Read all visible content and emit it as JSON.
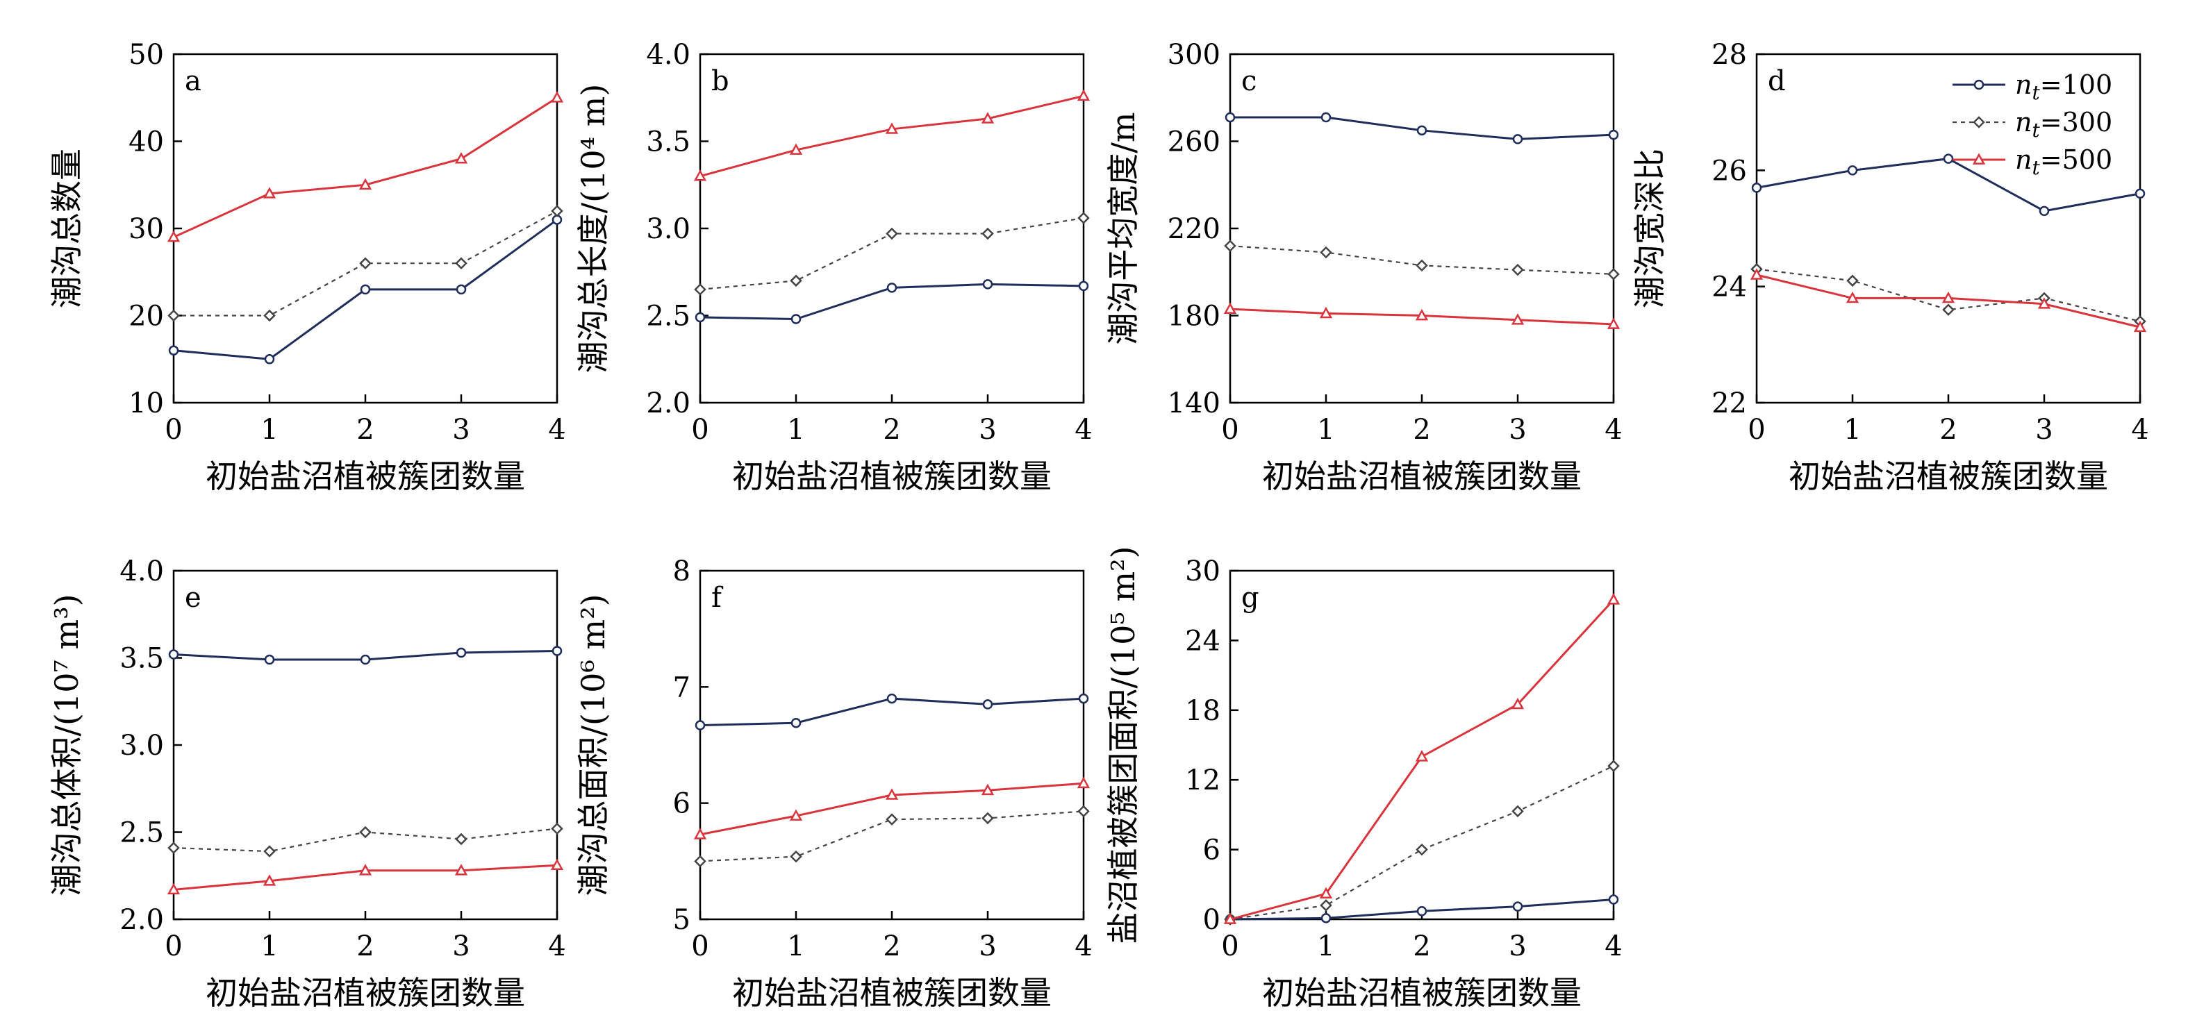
{
  "colors": {
    "n100": "#1f2d5a",
    "n300": "#444444",
    "n500": "#d9343c"
  },
  "legend": {
    "entries": [
      {
        "series": "n100",
        "prefix": "n",
        "sub": "t",
        "suffix": "=100",
        "marker": "circle",
        "dash": "solid"
      },
      {
        "series": "n300",
        "prefix": "n",
        "sub": "t",
        "suffix": "=300",
        "marker": "diamond",
        "dash": "dotted"
      },
      {
        "series": "n500",
        "prefix": "n",
        "sub": "t",
        "suffix": "=500",
        "marker": "triangle",
        "dash": "solid"
      }
    ]
  },
  "chart_data": [
    {
      "id": "a",
      "type": "line",
      "letter": "a",
      "xlabel": "初始盐沼植被簇团数量",
      "ylabel": "潮沟总数量",
      "x": [
        0,
        1,
        2,
        3,
        4
      ],
      "ylim": [
        10,
        50
      ],
      "yticks": [
        10,
        20,
        30,
        40,
        50
      ],
      "series": [
        {
          "key": "n100",
          "values": [
            16,
            15,
            23,
            23,
            31
          ]
        },
        {
          "key": "n300",
          "values": [
            20,
            20,
            26,
            26,
            32
          ]
        },
        {
          "key": "n500",
          "values": [
            29,
            34,
            35,
            38,
            45
          ]
        }
      ]
    },
    {
      "id": "b",
      "type": "line",
      "letter": "b",
      "xlabel": "初始盐沼植被簇团数量",
      "ylabel": "潮沟总长度/(10⁴ m)",
      "x": [
        0,
        1,
        2,
        3,
        4
      ],
      "ylim": [
        2.0,
        4.0
      ],
      "yticks": [
        "2.0",
        "2.5",
        "3.0",
        "3.5",
        "4.0"
      ],
      "series": [
        {
          "key": "n100",
          "values": [
            2.49,
            2.48,
            2.66,
            2.68,
            2.67
          ]
        },
        {
          "key": "n300",
          "values": [
            2.65,
            2.7,
            2.97,
            2.97,
            3.06
          ]
        },
        {
          "key": "n500",
          "values": [
            3.3,
            3.45,
            3.57,
            3.63,
            3.76
          ]
        }
      ]
    },
    {
      "id": "c",
      "type": "line",
      "letter": "c",
      "xlabel": "初始盐沼植被簇团数量",
      "ylabel": "潮沟平均宽度/m",
      "x": [
        0,
        1,
        2,
        3,
        4
      ],
      "ylim": [
        140,
        300
      ],
      "yticks": [
        140,
        180,
        220,
        260,
        300
      ],
      "series": [
        {
          "key": "n100",
          "values": [
            271,
            271,
            265,
            261,
            263
          ]
        },
        {
          "key": "n300",
          "values": [
            212,
            209,
            203,
            201,
            199
          ]
        },
        {
          "key": "n500",
          "values": [
            183,
            181,
            180,
            178,
            176
          ]
        }
      ]
    },
    {
      "id": "d",
      "type": "line",
      "letter": "d",
      "xlabel": "初始盐沼植被簇团数量",
      "ylabel": "潮沟宽深比",
      "x": [
        0,
        1,
        2,
        3,
        4
      ],
      "ylim": [
        22,
        28
      ],
      "yticks": [
        22,
        24,
        26,
        28
      ],
      "series": [
        {
          "key": "n100",
          "values": [
            25.7,
            26.0,
            26.2,
            25.3,
            25.6
          ]
        },
        {
          "key": "n300",
          "values": [
            24.3,
            24.1,
            23.6,
            23.8,
            23.4
          ]
        },
        {
          "key": "n500",
          "values": [
            24.2,
            23.8,
            23.8,
            23.7,
            23.3
          ]
        }
      ]
    },
    {
      "id": "e",
      "type": "line",
      "letter": "e",
      "xlabel": "初始盐沼植被簇团数量",
      "ylabel": "潮沟总体积/(10⁷ m³)",
      "x": [
        0,
        1,
        2,
        3,
        4
      ],
      "ylim": [
        2.0,
        4.0
      ],
      "yticks": [
        "2.0",
        "2.5",
        "3.0",
        "3.5",
        "4.0"
      ],
      "series": [
        {
          "key": "n100",
          "values": [
            3.52,
            3.49,
            3.49,
            3.53,
            3.54
          ]
        },
        {
          "key": "n300",
          "values": [
            2.41,
            2.39,
            2.5,
            2.46,
            2.52
          ]
        },
        {
          "key": "n500",
          "values": [
            2.17,
            2.22,
            2.28,
            2.28,
            2.31
          ]
        }
      ]
    },
    {
      "id": "f",
      "type": "line",
      "letter": "f",
      "xlabel": "初始盐沼植被簇团数量",
      "ylabel": "潮沟总面积/(10⁶ m²)",
      "x": [
        0,
        1,
        2,
        3,
        4
      ],
      "ylim": [
        5,
        8
      ],
      "yticks": [
        5,
        6,
        7,
        8
      ],
      "series": [
        {
          "key": "n100",
          "values": [
            6.67,
            6.69,
            6.9,
            6.85,
            6.9
          ]
        },
        {
          "key": "n300",
          "values": [
            5.5,
            5.54,
            5.86,
            5.87,
            5.93
          ]
        },
        {
          "key": "n500",
          "values": [
            5.73,
            5.89,
            6.07,
            6.11,
            6.17
          ]
        }
      ]
    },
    {
      "id": "g",
      "type": "line",
      "letter": "g",
      "xlabel": "初始盐沼植被簇团数量",
      "ylabel": "盐沼植被簇团面积/(10⁵ m²)",
      "x": [
        0,
        1,
        2,
        3,
        4
      ],
      "ylim": [
        0,
        30
      ],
      "yticks": [
        0,
        6,
        12,
        18,
        24,
        30
      ],
      "series": [
        {
          "key": "n100",
          "values": [
            0,
            0.1,
            0.7,
            1.1,
            1.7
          ]
        },
        {
          "key": "n300",
          "values": [
            0,
            1.2,
            6.0,
            9.3,
            13.2
          ]
        },
        {
          "key": "n500",
          "values": [
            0,
            2.2,
            14.0,
            18.5,
            27.5
          ]
        }
      ]
    }
  ]
}
